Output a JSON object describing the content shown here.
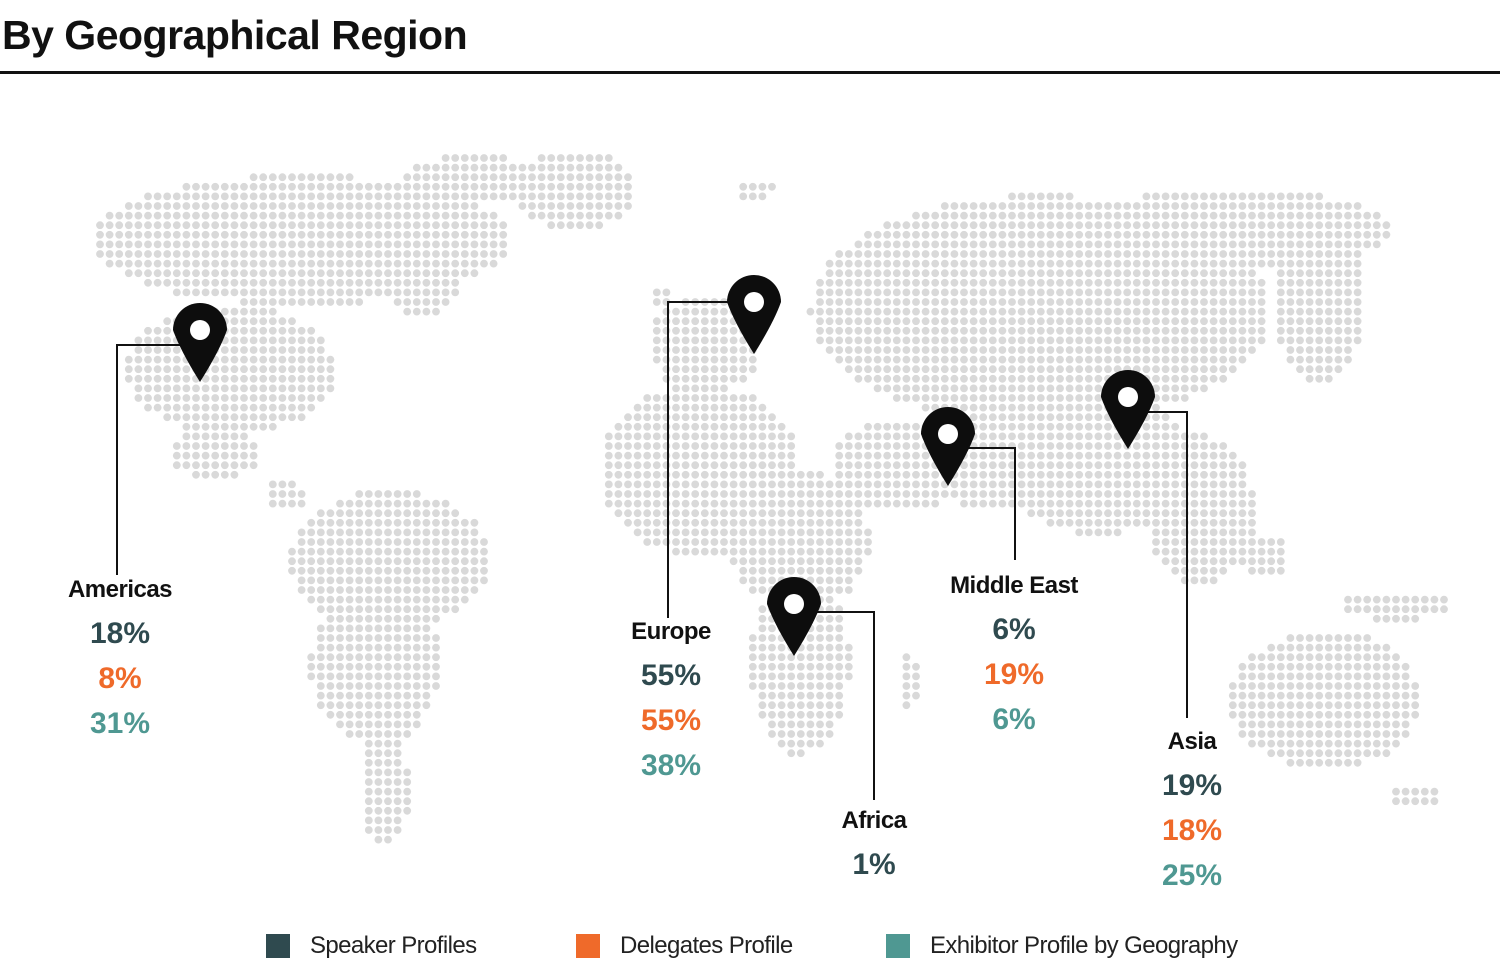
{
  "title": "By Geographical Region",
  "colors": {
    "speaker": "#2f4a4f",
    "delegates": "#ef6a2a",
    "exhibitor": "#4f9892",
    "dots": "#d9d9d9",
    "pin": "#0d0d0d"
  },
  "regions": {
    "americas": {
      "name": "Americas",
      "speaker": "18%",
      "delegates": "8%",
      "exhibitor": "31%"
    },
    "europe": {
      "name": "Europe",
      "speaker": "55%",
      "delegates": "55%",
      "exhibitor": "38%"
    },
    "africa": {
      "name": "Africa",
      "speaker": "1%"
    },
    "middle_east": {
      "name": "Middle East",
      "speaker": "6%",
      "delegates": "19%",
      "exhibitor": "6%"
    },
    "asia": {
      "name": "Asia",
      "speaker": "19%",
      "delegates": "18%",
      "exhibitor": "25%"
    }
  },
  "legend": {
    "speaker": "Speaker Profiles",
    "delegates": "Delegates Profile",
    "exhibitor": "Exhibitor Profile by Geography"
  }
}
